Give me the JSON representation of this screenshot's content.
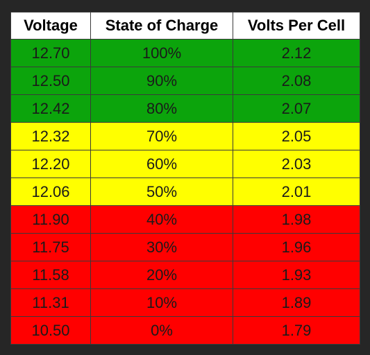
{
  "table": {
    "header": [
      "Voltage",
      "State of Charge",
      "Volts Per Cell"
    ],
    "rows": [
      [
        "12.70",
        "100%",
        "2.12"
      ],
      [
        "12.50",
        "90%",
        "2.08"
      ],
      [
        "12.42",
        "80%",
        "2.07"
      ],
      [
        "12.32",
        "70%",
        "2.05"
      ],
      [
        "12.20",
        "60%",
        "2.03"
      ],
      [
        "12.06",
        "50%",
        "2.01"
      ],
      [
        "11.90",
        "40%",
        "1.98"
      ],
      [
        "11.75",
        "30%",
        "1.96"
      ],
      [
        "11.58",
        "20%",
        "1.93"
      ],
      [
        "11.31",
        "10%",
        "1.89"
      ],
      [
        "10.50",
        "0%",
        "1.79"
      ]
    ],
    "row_colors": [
      "#0ca40c",
      "#0ca40c",
      "#0ca40c",
      "#ffff00",
      "#ffff00",
      "#ffff00",
      "#ff0000",
      "#ff0000",
      "#ff0000",
      "#ff0000",
      "#ff0000"
    ]
  }
}
